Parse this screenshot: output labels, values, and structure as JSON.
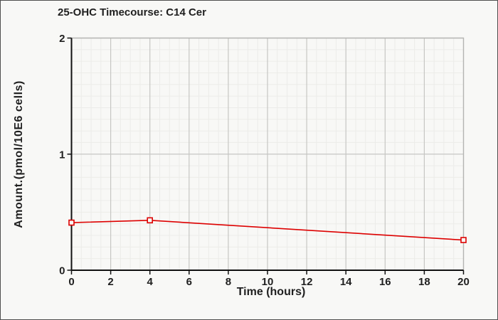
{
  "figure": {
    "background": "#f8f8f6",
    "border_color": "#4f4f4f"
  },
  "chart_data": {
    "type": "line",
    "title": "25-OHC Timecourse: C14 Cer",
    "xlabel": "Time (hours)",
    "ylabel": "Amount.(pmol/10E6 cells)",
    "xlim": [
      0,
      20
    ],
    "ylim": [
      0,
      2
    ],
    "xticks": [
      0,
      2,
      4,
      6,
      8,
      10,
      12,
      14,
      16,
      18,
      20
    ],
    "yticks": [
      0,
      1,
      2
    ],
    "x_minor_step": 0.5,
    "y_minor_step": 0.1,
    "grid": true,
    "legend": false,
    "series": [
      {
        "x": [
          0,
          4,
          20
        ],
        "y": [
          0.41,
          0.43,
          0.26
        ],
        "color": "#dd0000",
        "marker": "open-square"
      }
    ],
    "colors": {
      "axis": "#111111",
      "text": "#1f1f1f",
      "major_grid": "#c6c6c3",
      "minor_grid": "#ecece9",
      "frame": "#b4b4b1",
      "plot_background": "#f8f8f6"
    }
  }
}
